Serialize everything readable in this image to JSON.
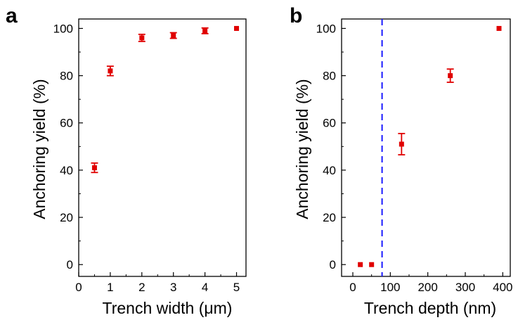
{
  "chart_data": [
    {
      "panel": "a",
      "type": "scatter",
      "xlabel": "Trench width (μm)",
      "ylabel": "Anchoring yield (%)",
      "xlim": [
        0,
        5.3
      ],
      "ylim": [
        -5,
        104
      ],
      "xticks": [
        0,
        1,
        2,
        3,
        4,
        5
      ],
      "yticks": [
        0,
        20,
        40,
        60,
        80,
        100
      ],
      "marker_color": "#e00000",
      "grid": false,
      "series": [
        {
          "x": [
            0.5,
            1,
            2,
            3,
            4,
            5
          ],
          "y": [
            41,
            82,
            96,
            97,
            99,
            100
          ],
          "yerr": [
            2,
            2,
            1.5,
            1.2,
            1.2,
            0
          ]
        }
      ]
    },
    {
      "panel": "b",
      "type": "scatter",
      "xlabel": "Trench depth (nm)",
      "ylabel": "Anchoring yield (%)",
      "xlim": [
        -30,
        420
      ],
      "ylim": [
        -5,
        104
      ],
      "xticks": [
        0,
        100,
        200,
        300,
        400
      ],
      "yticks": [
        0,
        20,
        40,
        60,
        80,
        100
      ],
      "marker_color": "#e00000",
      "vline": {
        "x": 78,
        "style": "dashed",
        "color": "#1a1aff"
      },
      "grid": false,
      "series": [
        {
          "x": [
            20,
            50,
            130,
            260,
            390
          ],
          "y": [
            0,
            0,
            51,
            80,
            100
          ],
          "yerr": [
            0,
            0,
            4.5,
            2.8,
            0
          ]
        }
      ]
    }
  ]
}
